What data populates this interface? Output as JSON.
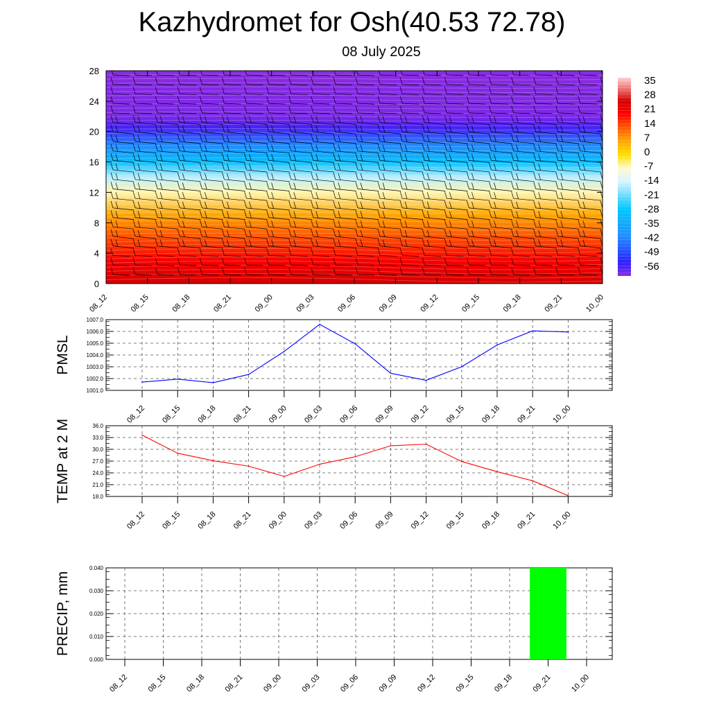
{
  "title": "Kazhydromet for Osh(40.53 72.78)",
  "subtitle": "08 July 2025",
  "chart_data": [
    {
      "type": "heatmap",
      "description_free": true,
      "y_ticks": [
        "0",
        "4",
        "8",
        "12",
        "16",
        "20",
        "24",
        "28"
      ],
      "ylim": [
        0,
        28
      ],
      "x_ticks": [
        "08_12",
        "08_15",
        "08_18",
        "08_21",
        "09_00",
        "09_03",
        "09_06",
        "09_09",
        "09_12",
        "09_15",
        "09_18",
        "09_21",
        "10_00"
      ],
      "colorbar_labels": [
        "35",
        "28",
        "21",
        "14",
        "7",
        "0",
        "-7",
        "-14",
        "-21",
        "-28",
        "-35",
        "-42",
        "-49",
        "-56"
      ],
      "colorbar_range": [
        -63,
        40
      ],
      "color_stops": [
        {
          "value": -63,
          "color": "#8a2be2"
        },
        {
          "value": -56,
          "color": "#2b1fff"
        },
        {
          "value": -42,
          "color": "#1e90ff"
        },
        {
          "value": -28,
          "color": "#00c8ff"
        },
        {
          "value": -14,
          "color": "#d8f4ff"
        },
        {
          "value": -7,
          "color": "#fffacd"
        },
        {
          "value": 0,
          "color": "#ffe000"
        },
        {
          "value": 7,
          "color": "#ffa500"
        },
        {
          "value": 14,
          "color": "#ff5a00"
        },
        {
          "value": 21,
          "color": "#ff0000"
        },
        {
          "value": 28,
          "color": "#d40000"
        },
        {
          "value": 35,
          "color": "#f08080"
        },
        {
          "value": 40,
          "color": "#ffd0d0"
        }
      ],
      "temperature_profile": [
        {
          "height": 0,
          "temp": 28
        },
        {
          "height": 3,
          "temp": 22
        },
        {
          "height": 6,
          "temp": 15
        },
        {
          "height": 9,
          "temp": 7
        },
        {
          "height": 12,
          "temp": -6
        },
        {
          "height": 14,
          "temp": -16
        },
        {
          "height": 16,
          "temp": -30
        },
        {
          "height": 18,
          "temp": -42
        },
        {
          "height": 20.5,
          "temp": -58
        },
        {
          "height": 22,
          "temp": -62
        },
        {
          "height": 28,
          "temp": -63
        }
      ]
    },
    {
      "type": "line",
      "ylabel": "PMSL",
      "y_ticks": [
        "1001.0",
        "1002.0",
        "1003.0",
        "1004.0",
        "1005.0",
        "1006.0",
        "1007.0"
      ],
      "ylim": [
        1001.0,
        1007.0
      ],
      "categories": [
        "08_12",
        "08_15",
        "08_18",
        "08_21",
        "09_00",
        "09_03",
        "09_06",
        "09_09",
        "09_12",
        "09_15",
        "09_18",
        "09_21",
        "10_00"
      ],
      "values": [
        1001.7,
        1001.95,
        1001.65,
        1002.35,
        1004.3,
        1006.6,
        1004.95,
        1002.45,
        1001.85,
        1003.0,
        1004.85,
        1006.05,
        1005.95
      ],
      "color": "#0000ff"
    },
    {
      "type": "line",
      "ylabel": "TEMP at 2 M",
      "y_ticks": [
        "18.0",
        "21.0",
        "24.0",
        "27.0",
        "30.0",
        "33.0",
        "36.0"
      ],
      "ylim": [
        18.0,
        36.0
      ],
      "categories": [
        "08_12",
        "08_15",
        "08_18",
        "08_21",
        "09_00",
        "09_03",
        "09_06",
        "09_09",
        "09_12",
        "09_15",
        "09_18",
        "09_21",
        "10_00"
      ],
      "values": [
        33.6,
        29.0,
        27.1,
        25.7,
        23.1,
        26.2,
        28.1,
        30.9,
        31.3,
        26.9,
        24.3,
        22.0,
        18.2
      ],
      "color": "#ff0000"
    },
    {
      "type": "bar",
      "ylabel": "PRECIP, mm",
      "y_ticks": [
        "0.000",
        "0.010",
        "0.020",
        "0.030",
        "0.040"
      ],
      "ylim": [
        0,
        0.04
      ],
      "categories": [
        "08_12",
        "08_15",
        "08_18",
        "08_21",
        "09_00",
        "09_03",
        "09_06",
        "09_09",
        "09_12",
        "09_15",
        "09_18",
        "09_21",
        "10_00"
      ],
      "values": [
        0,
        0,
        0,
        0,
        0,
        0,
        0,
        0,
        0,
        0,
        0,
        0.04,
        0
      ],
      "color": "#00ff00"
    }
  ]
}
